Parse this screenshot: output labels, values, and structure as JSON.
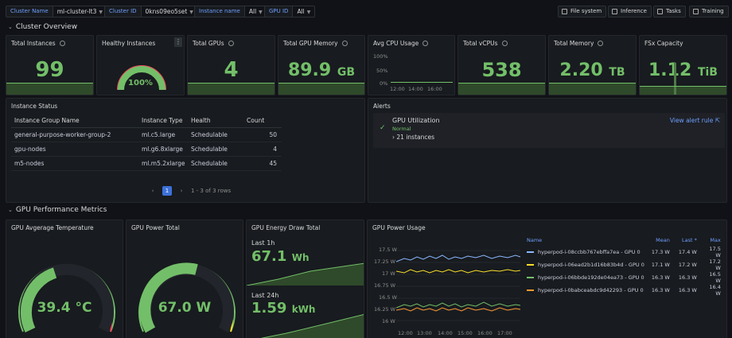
{
  "variables": [
    {
      "label": "Cluster Name",
      "value": "ml-cluster-lt3"
    },
    {
      "label": "Cluster ID",
      "value": "0kns09eo5set"
    },
    {
      "label": "Instance name",
      "value": "All"
    },
    {
      "label": "GPU ID",
      "value": "All"
    }
  ],
  "links": [
    "File system",
    "Inference",
    "Tasks",
    "Training"
  ],
  "rows": {
    "overview": "Cluster Overview",
    "gpu": "GPU Performance Metrics"
  },
  "stats": [
    {
      "title": "Total Instances",
      "value": "99",
      "unit": ""
    },
    {
      "title": "Healthy Instances",
      "value": "100%",
      "unit": "",
      "gauge_fraction": 1.0
    },
    {
      "title": "Total GPUs",
      "value": "4",
      "unit": ""
    },
    {
      "title": "Total GPU Memory",
      "value": "89.9",
      "unit": "GB"
    },
    {
      "title": "Avg CPU Usage",
      "value": "",
      "unit": ""
    },
    {
      "title": "Total vCPUs",
      "value": "538",
      "unit": ""
    },
    {
      "title": "Total Memory",
      "value": "2.20",
      "unit": "TB"
    },
    {
      "title": "FSx Capacity",
      "value": "1.12",
      "unit": "TiB"
    }
  ],
  "cpu_mini": {
    "y_ticks": [
      "100%",
      "50%",
      "0%"
    ],
    "x_ticks": [
      "12:00",
      "14:00",
      "16:00"
    ]
  },
  "instance_status": {
    "title": "Instance Status",
    "columns": [
      "Instance Group Name",
      "Instance Type",
      "Health",
      "Count"
    ],
    "rows": [
      [
        "general-purpose-worker-group-2",
        "ml.c5.large",
        "Schedulable",
        "50"
      ],
      [
        "gpu-nodes",
        "ml.g6.8xlarge",
        "Schedulable",
        "4"
      ],
      [
        "m5-nodes",
        "ml.m5.2xlarge",
        "Schedulable",
        "45"
      ]
    ],
    "page": "1",
    "range": "1 - 3 of 3 rows"
  },
  "alerts": {
    "title": "Alerts",
    "rule": "GPU Utilization",
    "state": "Normal",
    "instances": "21 instances",
    "link": "View alert rule"
  },
  "gpu_temp": {
    "title": "GPU Avgerage Temperature",
    "value": "39.4 °C",
    "fraction": 0.39
  },
  "gpu_power": {
    "title": "GPU Power Total",
    "value": "67.0 W",
    "fraction": 0.56
  },
  "energy": {
    "title": "GPU Energy Draw Total",
    "last1h_label": "Last 1h",
    "last1h_value": "67.1",
    "last1h_unit": "Wh",
    "last24h_label": "Last 24h",
    "last24h_value": "1.59",
    "last24h_unit": "kWh"
  },
  "power_usage": {
    "title": "GPU Power Usage",
    "y_ticks": [
      "17.5 W",
      "17.25 W",
      "17 W",
      "16.75 W",
      "16.5 W",
      "16.25 W",
      "16 W"
    ],
    "x_ticks": [
      "12:00",
      "13:00",
      "14:00",
      "15:00",
      "16:00",
      "17:00"
    ],
    "legend_headers": [
      "Name",
      "Mean",
      "Last *",
      "Max"
    ],
    "series": [
      {
        "name": "hyperpod-i-08ccbb767ebffa7ea - GPU 0",
        "color": "#8ab8ff",
        "mean": "17.3 W",
        "last": "17.4 W",
        "max": "17.5 W"
      },
      {
        "name": "hyperpod-i-06ead2b1d16b83b4d - GPU 0",
        "color": "#fade2a",
        "mean": "17.1 W",
        "last": "17.2 W",
        "max": "17.2 W"
      },
      {
        "name": "hyperpod-i-06bbde192de04ea73 - GPU 0",
        "color": "#73bf69",
        "mean": "16.3 W",
        "last": "16.3 W",
        "max": "16.5 W"
      },
      {
        "name": "hyperpod-i-0babceabdc9d42293 - GPU 0",
        "color": "#ff9830",
        "mean": "16.3 W",
        "last": "16.3 W",
        "max": "16.4 W"
      }
    ]
  },
  "colors": {
    "green": "#73bf69",
    "yellow": "#fade2a",
    "red": "#f2495c",
    "blue": "#3d71d9"
  }
}
